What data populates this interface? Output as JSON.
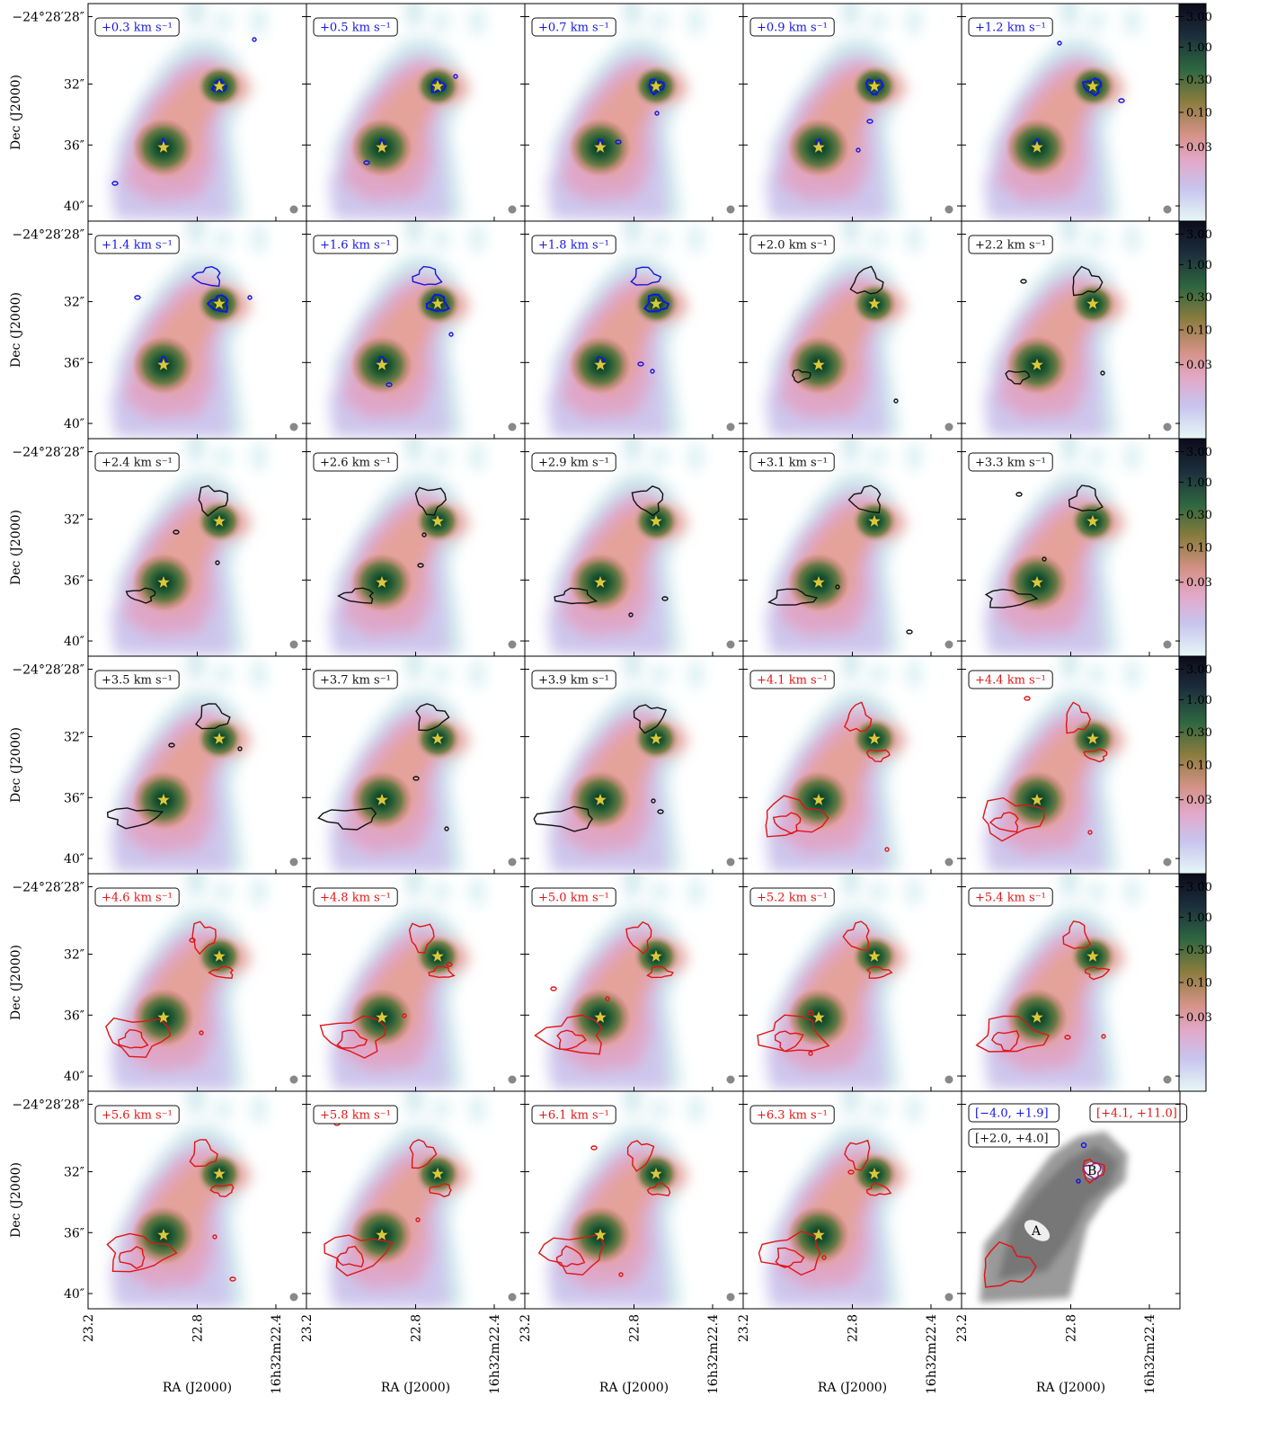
{
  "figure": {
    "y_axis_label": "Dec (J2000)",
    "x_axis_label": "RA (J2000)",
    "dec_ticks": [
      "−24°28′28″",
      "32″",
      "36″",
      "40″"
    ],
    "ra_ticks": [
      "23.2",
      "22.8",
      "22.4"
    ],
    "ra_last_prefix": "16h32m",
    "colorbar_ticks": [
      "3.00",
      "1.00",
      "0.30",
      "0.10",
      "0.03"
    ],
    "colors": {
      "blue": "#1515e0",
      "black": "#111111",
      "red": "#e01515",
      "star": "#d8c83a"
    },
    "channels": [
      {
        "label": "+0.3 km s⁻¹",
        "color": "blue"
      },
      {
        "label": "+0.5 km s⁻¹",
        "color": "blue"
      },
      {
        "label": "+0.7 km s⁻¹",
        "color": "blue"
      },
      {
        "label": "+0.9 km s⁻¹",
        "color": "blue"
      },
      {
        "label": "+1.2 km s⁻¹",
        "color": "blue"
      },
      {
        "label": "+1.4 km s⁻¹",
        "color": "blue"
      },
      {
        "label": "+1.6 km s⁻¹",
        "color": "blue"
      },
      {
        "label": "+1.8 km s⁻¹",
        "color": "blue"
      },
      {
        "label": "+2.0 km s⁻¹",
        "color": "black"
      },
      {
        "label": "+2.2 km s⁻¹",
        "color": "black"
      },
      {
        "label": "+2.4 km s⁻¹",
        "color": "black"
      },
      {
        "label": "+2.6 km s⁻¹",
        "color": "black"
      },
      {
        "label": "+2.9 km s⁻¹",
        "color": "black"
      },
      {
        "label": "+3.1 km s⁻¹",
        "color": "black"
      },
      {
        "label": "+3.3 km s⁻¹",
        "color": "black"
      },
      {
        "label": "+3.5 km s⁻¹",
        "color": "black"
      },
      {
        "label": "+3.7 km s⁻¹",
        "color": "black"
      },
      {
        "label": "+3.9 km s⁻¹",
        "color": "black"
      },
      {
        "label": "+4.1 km s⁻¹",
        "color": "red"
      },
      {
        "label": "+4.4 km s⁻¹",
        "color": "red"
      },
      {
        "label": "+4.6 km s⁻¹",
        "color": "red"
      },
      {
        "label": "+4.8 km s⁻¹",
        "color": "red"
      },
      {
        "label": "+5.0 km s⁻¹",
        "color": "red"
      },
      {
        "label": "+5.2 km s⁻¹",
        "color": "red"
      },
      {
        "label": "+5.4 km s⁻¹",
        "color": "red"
      },
      {
        "label": "+5.6 km s⁻¹",
        "color": "red"
      },
      {
        "label": "+5.8 km s⁻¹",
        "color": "red"
      },
      {
        "label": "+6.1 km s⁻¹",
        "color": "red"
      },
      {
        "label": "+6.3 km s⁻¹",
        "color": "red"
      }
    ],
    "summary_panel": {
      "blue_range": "[−4.0, +1.9]",
      "black_range": "[+2.0, +4.0]",
      "red_range": "[+4.1, +11.0]",
      "source_a": "A",
      "source_b": "B"
    }
  }
}
